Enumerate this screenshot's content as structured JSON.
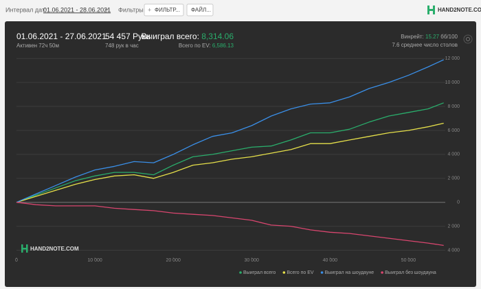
{
  "toolbar": {
    "date_label": "Интервал дат:",
    "date_range": "01.06.2021 - 28.06.2021",
    "filters_label": "Фильтры:",
    "filter_button": "ФИЛЬТР...",
    "file_button": "ФАЙЛ...",
    "logo": "HAND2NOTE.COM"
  },
  "stats": {
    "period": "01.06.2021 - 27.06.2021",
    "active": "Активен 72ч 50м",
    "hands": "54 457 Руки",
    "hands_per_hour": "748 рук в час",
    "won_label": "Выиграл всего:",
    "won_value": "8,314.06",
    "ev_label": "Всего по EV:",
    "ev_value": "6,586.13",
    "winrate_label": "Винрейт:",
    "winrate_value": "15.27",
    "winrate_unit": "бб/100",
    "tables": "7.6 среднее число столов"
  },
  "chart_data": {
    "type": "line",
    "watermark": "HAND2NOTE.COM",
    "x": [
      0,
      2500,
      5000,
      7500,
      10000,
      12500,
      15000,
      17500,
      20000,
      22500,
      25000,
      27500,
      30000,
      32500,
      35000,
      37500,
      40000,
      42500,
      45000,
      47500,
      50000,
      52500,
      54500
    ],
    "series": [
      {
        "name": "Выиграл всего",
        "color": "#2aae6c",
        "values": [
          0,
          600,
          1200,
          1800,
          2200,
          2500,
          2500,
          2300,
          3100,
          3800,
          4000,
          4300,
          4600,
          4700,
          5200,
          5800,
          5800,
          6100,
          6700,
          7200,
          7500,
          7800,
          8300
        ]
      },
      {
        "name": "Всего по EV",
        "color": "#e6e04a",
        "values": [
          0,
          500,
          1000,
          1500,
          1900,
          2200,
          2300,
          2000,
          2500,
          3100,
          3300,
          3600,
          3800,
          4100,
          4400,
          4900,
          4900,
          5200,
          5500,
          5800,
          6000,
          6300,
          6600
        ]
      },
      {
        "name": "Выиграл на шоудауне",
        "color": "#3a8fe8",
        "values": [
          0,
          700,
          1400,
          2100,
          2700,
          3000,
          3400,
          3300,
          4000,
          4800,
          5500,
          5800,
          6400,
          7200,
          7800,
          8200,
          8300,
          8800,
          9500,
          10000,
          10600,
          11300,
          11900
        ]
      },
      {
        "name": "Выиграл без шоудауна",
        "color": "#d9466f",
        "values": [
          0,
          -200,
          -300,
          -300,
          -300,
          -500,
          -600,
          -700,
          -900,
          -1000,
          -1100,
          -1300,
          -1500,
          -1900,
          -2000,
          -2300,
          -2500,
          -2600,
          -2800,
          -3000,
          -3200,
          -3400,
          -3600
        ]
      }
    ],
    "xlim": [
      0,
      54700
    ],
    "xticks": [
      0,
      {
        "value": 10000,
        "label": "10 000"
      },
      {
        "value": 20000,
        "label": "20 000"
      },
      {
        "value": 30000,
        "label": "30 000"
      },
      {
        "value": 40000,
        "label": "40 000"
      },
      {
        "value": 50000,
        "label": "50 000"
      }
    ],
    "ylim": [
      -4600,
      12300
    ],
    "yticks": [
      {
        "value": -4000,
        "label": "4 000"
      },
      {
        "value": -2000,
        "label": "2 000"
      },
      0,
      {
        "value": 2000,
        "label": "2 000"
      },
      {
        "value": 4000,
        "label": "4 000"
      },
      {
        "value": 6000,
        "label": "6 000"
      },
      {
        "value": 8000,
        "label": "8 000"
      },
      {
        "value": 10000,
        "label": "10 000"
      },
      {
        "value": 12000,
        "label": "12 000"
      }
    ],
    "grid": true
  }
}
